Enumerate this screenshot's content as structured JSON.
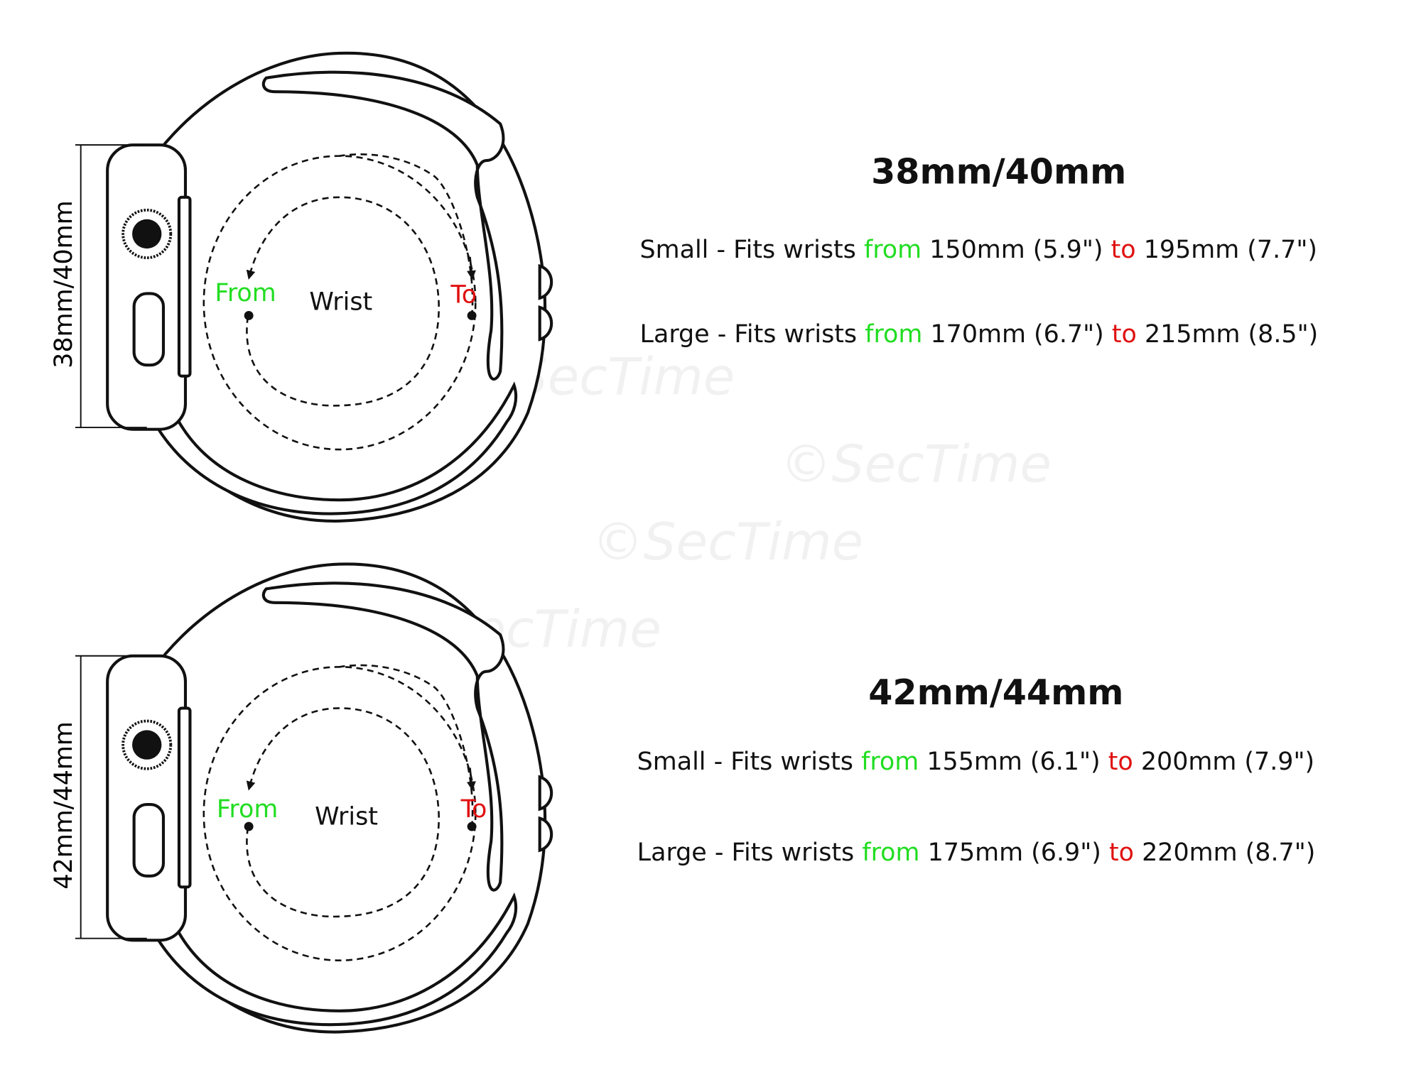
{
  "colors": {
    "from": "#22dd22",
    "to": "#e01010",
    "text": "#111111"
  },
  "watermark": "©SecTime",
  "diagrams": [
    {
      "size_label": "38mm/40mm",
      "heading": "38mm/40mm",
      "from_label": "From",
      "wrist_label": "Wrist",
      "to_label": "To",
      "rows": [
        {
          "size": "Small",
          "prefix": " - Fits wrists ",
          "from_word": "from",
          "from_value": " 150mm (5.9\") ",
          "to_word": "to",
          "to_value": " 195mm (7.7\")"
        },
        {
          "size": "Large",
          "prefix": " - Fits wrists ",
          "from_word": "from",
          "from_value": " 170mm (6.7\") ",
          "to_word": "to",
          "to_value": " 215mm (8.5\")"
        }
      ]
    },
    {
      "size_label": "42mm/44mm",
      "heading": "42mm/44mm",
      "from_label": "From",
      "wrist_label": "Wrist",
      "to_label": "To",
      "rows": [
        {
          "size": "Small",
          "prefix": " - Fits wrists ",
          "from_word": "from",
          "from_value": " 155mm (6.1\") ",
          "to_word": "to",
          "to_value": " 200mm (7.9\")"
        },
        {
          "size": "Large",
          "prefix": " - Fits wrists ",
          "from_word": "from",
          "from_value": " 175mm (6.9\") ",
          "to_word": "to",
          "to_value": " 220mm (8.7\")"
        }
      ]
    }
  ]
}
